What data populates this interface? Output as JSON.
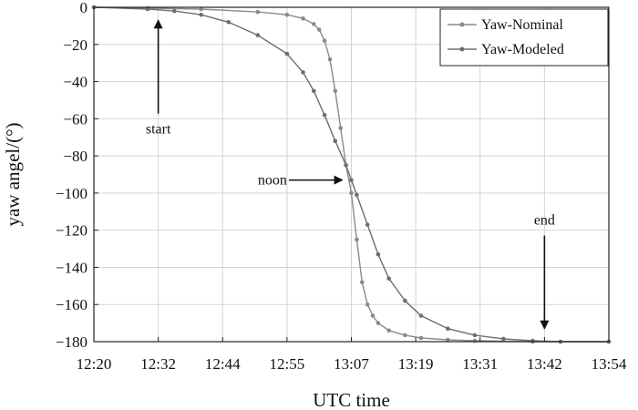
{
  "chart_data": {
    "type": "line",
    "xlabel": "UTC time",
    "ylabel": "yaw angel/(°)",
    "x_tick_labels": [
      "12:20",
      "12:32",
      "12:44",
      "12:55",
      "13:07",
      "13:19",
      "13:31",
      "13:42",
      "13:54"
    ],
    "y_ticks": [
      0,
      -20,
      -40,
      -60,
      -80,
      -100,
      -120,
      -140,
      -160,
      -180
    ],
    "y_tick_labels": [
      "0",
      "−20",
      "−40",
      "−60",
      "−80",
      "−100",
      "−120",
      "−140",
      "−160",
      "−180"
    ],
    "ylim": [
      -180,
      0
    ],
    "grid": true,
    "legend_position": "top-right",
    "series": [
      {
        "name": "Yaw-Nominal",
        "color": "#8a8a8a",
        "x": [
          "12:20",
          "12:30",
          "12:40",
          "12:50",
          "12:55",
          "12:58",
          "13:00",
          "13:01",
          "13:02",
          "13:03",
          "13:04",
          "13:05",
          "13:06",
          "13:07",
          "13:08",
          "13:09",
          "13:10",
          "13:11",
          "13:12",
          "13:14",
          "13:17",
          "13:20",
          "13:25",
          "13:30",
          "13:40",
          "13:54"
        ],
        "y": [
          0,
          -0.5,
          -1,
          -2.5,
          -4,
          -6,
          -9,
          -12,
          -18,
          -28,
          -45,
          -65,
          -85,
          -100,
          -125,
          -148,
          -160,
          -166,
          -170,
          -174,
          -176.5,
          -178,
          -179,
          -179.5,
          -180,
          -180
        ]
      },
      {
        "name": "Yaw-Modeled",
        "color": "#6e6e6e",
        "x": [
          "12:20",
          "12:30",
          "12:35",
          "12:40",
          "12:45",
          "12:50",
          "12:55",
          "12:58",
          "13:00",
          "13:02",
          "13:04",
          "13:06",
          "13:07",
          "13:08",
          "13:10",
          "13:12",
          "13:14",
          "13:17",
          "13:20",
          "13:25",
          "13:30",
          "13:35",
          "13:40",
          "13:45",
          "13:54"
        ],
        "y": [
          0,
          -1,
          -2,
          -4,
          -8,
          -15,
          -25,
          -35,
          -45,
          -58,
          -72,
          -85,
          -93,
          -101,
          -117,
          -133,
          -146,
          -158,
          -166,
          -173,
          -176.5,
          -178.5,
          -179.5,
          -180,
          -180
        ]
      }
    ],
    "annotations": [
      {
        "text": "start",
        "x": "12:32",
        "y": -68,
        "arrow_to_y": -7,
        "direction": "up"
      },
      {
        "text": "noon",
        "x_tick": "12:55",
        "y": -93,
        "arrow_to_x": "13:06",
        "direction": "right"
      },
      {
        "text": "end",
        "x": "13:42",
        "y": -117,
        "arrow_to_y": -173,
        "direction": "down"
      }
    ]
  }
}
